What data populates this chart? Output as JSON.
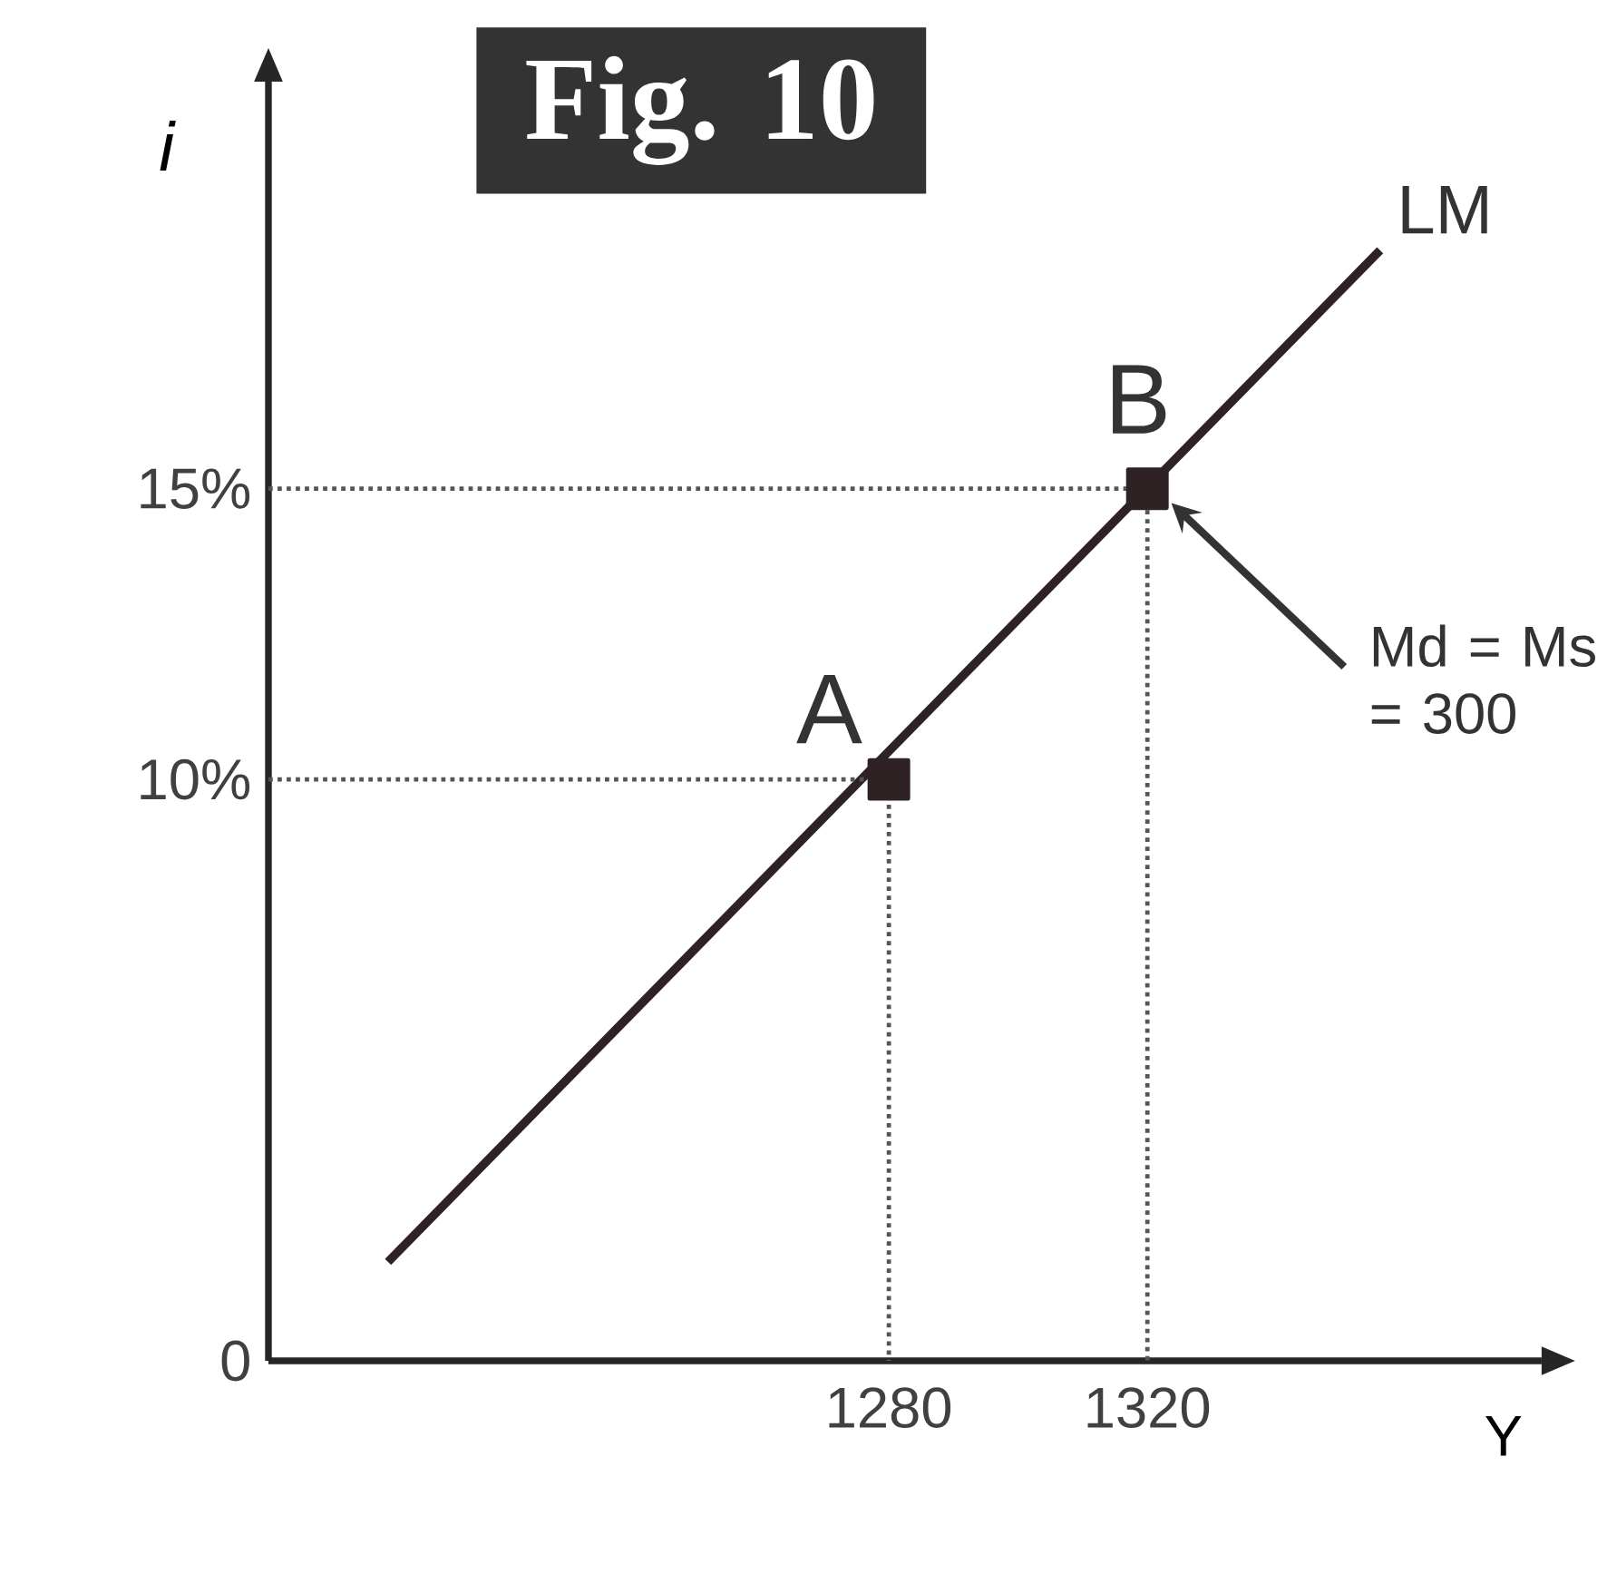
{
  "chart_data": {
    "type": "line",
    "title": "Fig. 10",
    "xlabel": "Y",
    "ylabel": "i",
    "xlim": [
      1184,
      1381
    ],
    "ylim": [
      0,
      22
    ],
    "xticks": [
      1280,
      1320
    ],
    "yticks": [
      {
        "value": 0,
        "label": "0"
      },
      {
        "value": 10,
        "label": "10%"
      },
      {
        "value": 15,
        "label": "15%"
      }
    ],
    "series": [
      {
        "name": "LM",
        "color": "#2e2224",
        "x": [
          1202.5,
          1356
        ],
        "values": [
          1.7,
          19.1
        ]
      },
      {
        "type": "line",
        "color": "#555555",
        "line_style": "dotted",
        "x": [
          1184,
          1280,
          1280
        ],
        "values": [
          10,
          10,
          0
        ]
      },
      {
        "type": "line",
        "color": "#555555",
        "line_style": "dotted",
        "x": [
          1184,
          1320,
          1320
        ],
        "values": [
          15,
          15,
          0
        ]
      },
      {
        "type": "scatter",
        "marker": "square",
        "color": "#2e2224",
        "x": [
          1280,
          1320
        ],
        "values": [
          10,
          15
        ]
      }
    ],
    "annotations": [
      {
        "text": "A",
        "x": 1280,
        "y": 10
      },
      {
        "text": "B",
        "x": 1320,
        "y": 15
      },
      "Md = Ms = 300"
    ]
  }
}
